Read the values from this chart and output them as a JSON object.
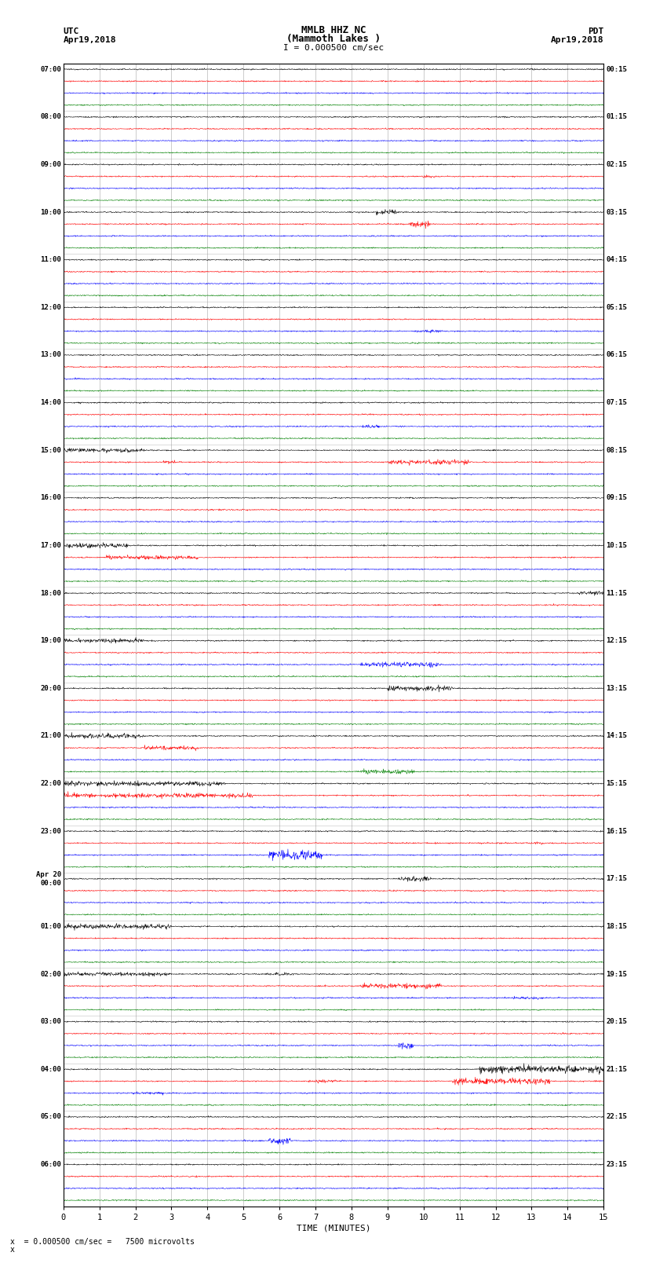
{
  "title_line1": "MMLB HHZ NC",
  "title_line2": "(Mammoth Lakes )",
  "title_line3": "I = 0.000500 cm/sec",
  "left_header_line1": "UTC",
  "left_header_line2": "Apr19,2018",
  "right_header_line1": "PDT",
  "right_header_line2": "Apr19,2018",
  "xlabel": "TIME (MINUTES)",
  "footnote": "x  = 0.000500 cm/sec =   7500 microvolts",
  "utc_labels": [
    "07:00",
    "08:00",
    "09:00",
    "10:00",
    "11:00",
    "12:00",
    "13:00",
    "14:00",
    "15:00",
    "16:00",
    "17:00",
    "18:00",
    "19:00",
    "20:00",
    "21:00",
    "22:00",
    "23:00",
    "Apr 20\n00:00",
    "01:00",
    "02:00",
    "03:00",
    "04:00",
    "05:00",
    "06:00"
  ],
  "pdt_labels": [
    "00:15",
    "01:15",
    "02:15",
    "03:15",
    "04:15",
    "05:15",
    "06:15",
    "07:15",
    "08:15",
    "09:15",
    "10:15",
    "11:15",
    "12:15",
    "13:15",
    "14:15",
    "15:15",
    "16:15",
    "17:15",
    "18:15",
    "19:15",
    "20:15",
    "21:15",
    "22:15",
    "23:15"
  ],
  "num_hour_groups": 24,
  "traces_per_group": 4,
  "colors": [
    "black",
    "red",
    "blue",
    "green"
  ],
  "background": "white",
  "grid_color": "#999999",
  "x_min": 0,
  "x_max": 15,
  "x_ticks": [
    0,
    1,
    2,
    3,
    4,
    5,
    6,
    7,
    8,
    9,
    10,
    11,
    12,
    13,
    14,
    15
  ],
  "noise_scale": 0.025,
  "seed": 12345
}
